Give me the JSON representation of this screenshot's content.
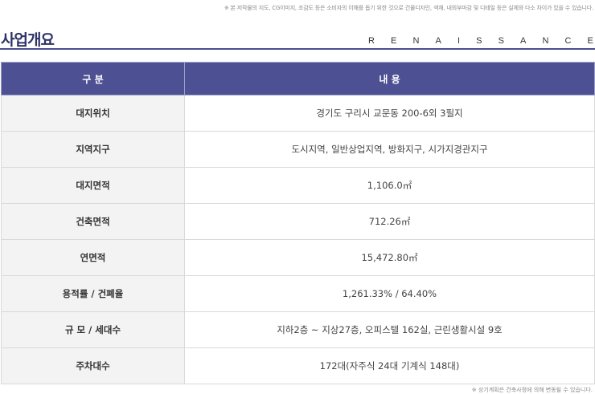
{
  "top_note": "※ 본 저작물의 지도, CG이미지, 조감도 등은 소비자의 이해를 돕기 위한 것으로 건물디자인, 색채, 내외부마감 및 디테일 등은 실체와 다소 차이가 있을 수 있습니다.",
  "title": "사업개요",
  "brand_letters": [
    "R",
    "E",
    "N",
    "A",
    "I",
    "S",
    "S",
    "A",
    "N",
    "C",
    "E"
  ],
  "table": {
    "headers": [
      "구 분",
      "내 용"
    ],
    "rows": [
      {
        "label": "대지위치",
        "value": "경기도 구리시 교문동 200-6외 3필지"
      },
      {
        "label": "지역지구",
        "value": "도시지역, 일반상업지역, 방화지구, 시가지경관지구"
      },
      {
        "label": "대지면적",
        "value": "1,106.0㎡"
      },
      {
        "label": "건축면적",
        "value": "712.26㎡"
      },
      {
        "label": "연면적",
        "value": "15,472.80㎡"
      },
      {
        "label": "용적률 / 건폐율",
        "value": "1,261.33% / 64.40%"
      },
      {
        "label": "규 모 / 세대수",
        "value": "지하2층 ~ 지상27층, 오피스텔 162실, 근린생활시설 9호"
      },
      {
        "label": "주차대수",
        "value": "172대(자주식 24대 기계식 148대)"
      }
    ]
  },
  "bottom_note": "※ 상기계획은 건축사정에 의해 변동될 수 있습니다.",
  "colors": {
    "header_bg": "#4d5193",
    "title": "#2e3266",
    "label_bg": "#f3f3f3"
  }
}
